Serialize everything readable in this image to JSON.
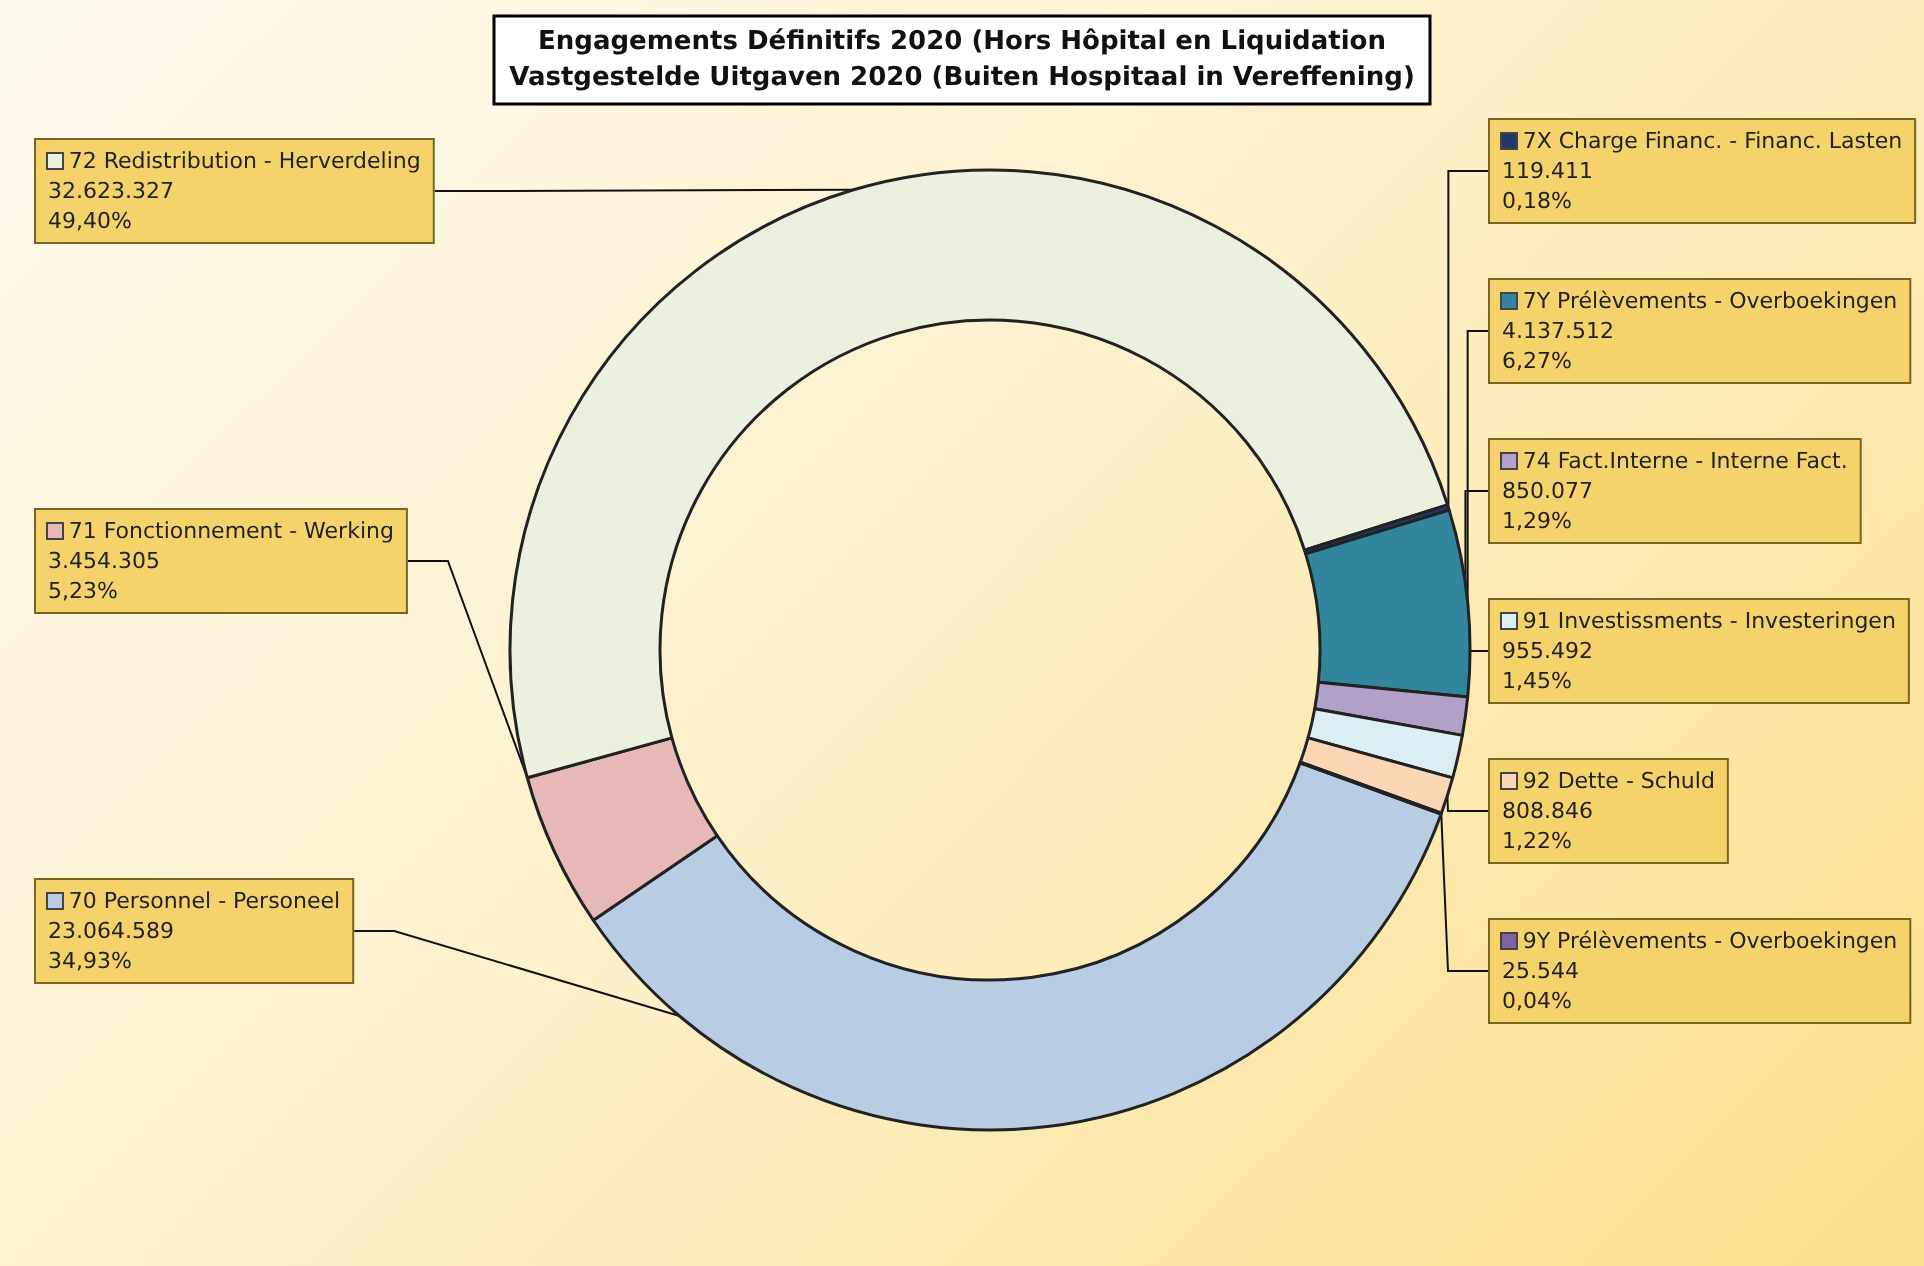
{
  "chart_data": {
    "type": "donut",
    "title": "Engagements Définitifs 2020 (Hors Hôpital en Liquidation\nVastgestelde Uitgaven 2020 (Buiten Hospitaal in Vereffening)",
    "categories": [
      "70 Personnel - Personeel",
      "71 Fonctionnement - Werking",
      "72 Redistribution - Herverdeling",
      "7X Charge Financ. - Financ. Lasten",
      "7Y Prélèvements - Overboekingen",
      "74 Fact.Interne - Interne Fact.",
      "91 Investissments - Investeringen",
      "92 Dette - Schuld",
      "9Y Prélèvements - Overboekingen"
    ],
    "values": [
      23064589,
      3454305,
      32623327,
      119411,
      4137512,
      850077,
      955492,
      808846,
      25544
    ],
    "colors": [
      "#b8cce4",
      "#e6b9b8",
      "#ebf1de",
      "#1f3864",
      "#31859c",
      "#b1a0c7",
      "#dbeef4",
      "#fcd5b4",
      "#8064a2"
    ],
    "value_labels": [
      "23.064.589\n34,93%",
      "3.454.305\n5,23%",
      "32.623.327\n49,40%",
      "119.411\n0,18%",
      "4.137.512\n6,27%",
      "850.077\n1,29%",
      "955.492\n1,45%",
      "808.846\n1,22%",
      "25.544\n0,04%"
    ],
    "legend": "right"
  }
}
